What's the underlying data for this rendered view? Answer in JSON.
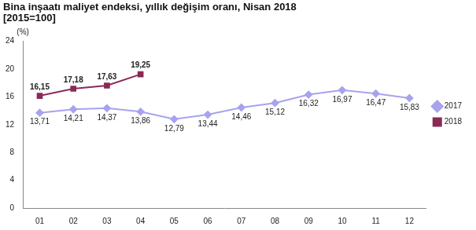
{
  "chart_data": {
    "type": "line",
    "title": "Bina inşaatı maliyet endeksi, yıllık değişim oranı, Nisan 2018",
    "subtitle": "[2015=100]",
    "y_label": "(%)",
    "categories": [
      "01",
      "02",
      "03",
      "04",
      "05",
      "06",
      "07",
      "08",
      "09",
      "10",
      "11",
      "12"
    ],
    "series": [
      {
        "name": "2017",
        "color": "#a7a3ee",
        "marker": "diamond",
        "line_style": "solid",
        "values": [
          13.71,
          14.21,
          14.37,
          13.86,
          12.79,
          13.44,
          14.46,
          15.12,
          16.32,
          16.97,
          16.47,
          15.83
        ],
        "value_labels": [
          "13,71",
          "14,21",
          "14,37",
          "13,86",
          "12,79",
          "13,44",
          "14,46",
          "15,12",
          "16,32",
          "16,97",
          "16,47",
          "15,83"
        ]
      },
      {
        "name": "2018",
        "color": "#8b2a57",
        "marker": "square",
        "line_style": "solid",
        "values": [
          16.15,
          17.18,
          17.63,
          19.25,
          null,
          null,
          null,
          null,
          null,
          null,
          null,
          null
        ],
        "value_labels": [
          "16,15",
          "17,18",
          "17,63",
          "19,25",
          null,
          null,
          null,
          null,
          null,
          null,
          null,
          null
        ]
      }
    ],
    "ylim": [
      0,
      24
    ],
    "yticks": [
      0,
      4,
      8,
      12,
      16,
      20,
      24
    ],
    "grid": false,
    "legend": "right",
    "data_labels": true
  }
}
